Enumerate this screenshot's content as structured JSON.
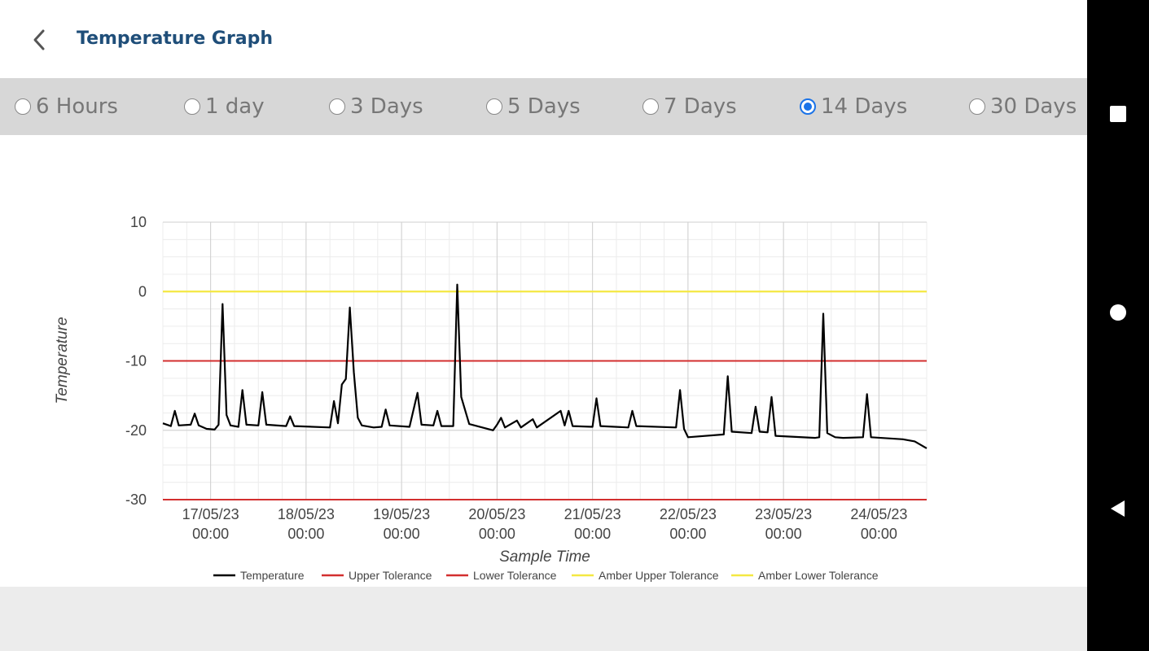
{
  "header": {
    "title": "Temperature Graph"
  },
  "range_options": [
    {
      "label": "6 Hours",
      "selected": false
    },
    {
      "label": "1 day",
      "selected": false
    },
    {
      "label": "3 Days",
      "selected": false
    },
    {
      "label": "5 Days",
      "selected": false
    },
    {
      "label": "7 Days",
      "selected": false
    },
    {
      "label": "14 Days",
      "selected": true
    },
    {
      "label": "30 Days",
      "selected": false
    }
  ],
  "chart_data": {
    "type": "line",
    "xlabel": "Sample Time",
    "ylabel": "Temperature",
    "ylim": [
      -30,
      10
    ],
    "yticks": [
      "10",
      "0",
      "-10",
      "-20",
      "-30"
    ],
    "xlim": [
      "16/05/23 12:00",
      "24/05/23 12:00"
    ],
    "xticks": [
      {
        "date": "17/05/23",
        "time": "00:00"
      },
      {
        "date": "18/05/23",
        "time": "00:00"
      },
      {
        "date": "19/05/23",
        "time": "00:00"
      },
      {
        "date": "20/05/23",
        "time": "00:00"
      },
      {
        "date": "21/05/23",
        "time": "00:00"
      },
      {
        "date": "22/05/23",
        "time": "00:00"
      },
      {
        "date": "23/05/23",
        "time": "00:00"
      },
      {
        "date": "24/05/23",
        "time": "00:00"
      }
    ],
    "grid": true,
    "legend_position": "bottom",
    "series": [
      {
        "name": "Temperature",
        "color": "#000000",
        "points": [
          [
            "16/05/23 12:00",
            -19.0
          ],
          [
            "16/05/23 14:00",
            -19.4
          ],
          [
            "16/05/23 15:00",
            -17.2
          ],
          [
            "16/05/23 16:00",
            -19.3
          ],
          [
            "16/05/23 19:00",
            -19.2
          ],
          [
            "16/05/23 20:00",
            -17.6
          ],
          [
            "16/05/23 21:00",
            -19.3
          ],
          [
            "16/05/23 23:00",
            -19.8
          ],
          [
            "17/05/23 01:00",
            -19.9
          ],
          [
            "17/05/23 02:00",
            -19.2
          ],
          [
            "17/05/23 03:00",
            -1.8
          ],
          [
            "17/05/23 04:00",
            -17.8
          ],
          [
            "17/05/23 05:00",
            -19.3
          ],
          [
            "17/05/23 07:00",
            -19.5
          ],
          [
            "17/05/23 08:00",
            -14.2
          ],
          [
            "17/05/23 09:00",
            -19.2
          ],
          [
            "17/05/23 12:00",
            -19.3
          ],
          [
            "17/05/23 13:00",
            -14.5
          ],
          [
            "17/05/23 14:00",
            -19.2
          ],
          [
            "17/05/23 19:00",
            -19.4
          ],
          [
            "17/05/23 20:00",
            -18.0
          ],
          [
            "17/05/23 21:00",
            -19.4
          ],
          [
            "18/05/23 06:00",
            -19.6
          ],
          [
            "18/05/23 07:00",
            -15.8
          ],
          [
            "18/05/23 08:00",
            -19.0
          ],
          [
            "18/05/23 09:00",
            -13.4
          ],
          [
            "18/05/23 10:00",
            -12.6
          ],
          [
            "18/05/23 11:00",
            -2.3
          ],
          [
            "18/05/23 12:00",
            -11.6
          ],
          [
            "18/05/23 13:00",
            -18.2
          ],
          [
            "18/05/23 14:00",
            -19.3
          ],
          [
            "18/05/23 17:00",
            -19.6
          ],
          [
            "18/05/23 19:00",
            -19.5
          ],
          [
            "18/05/23 20:00",
            -17.0
          ],
          [
            "18/05/23 21:00",
            -19.3
          ],
          [
            "19/05/23 02:00",
            -19.5
          ],
          [
            "19/05/23 04:00",
            -14.6
          ],
          [
            "19/05/23 05:00",
            -19.2
          ],
          [
            "19/05/23 08:00",
            -19.3
          ],
          [
            "19/05/23 09:00",
            -17.2
          ],
          [
            "19/05/23 10:00",
            -19.4
          ],
          [
            "19/05/23 13:00",
            -19.4
          ],
          [
            "19/05/23 14:00",
            1.0
          ],
          [
            "19/05/23 15:00",
            -15.2
          ],
          [
            "19/05/23 17:00",
            -19.1
          ],
          [
            "19/05/23 23:00",
            -20.0
          ],
          [
            "20/05/23 00:00",
            -19.2
          ],
          [
            "20/05/23 01:00",
            -18.2
          ],
          [
            "20/05/23 02:00",
            -19.6
          ],
          [
            "20/05/23 05:00",
            -18.6
          ],
          [
            "20/05/23 06:00",
            -19.6
          ],
          [
            "20/05/23 09:00",
            -18.4
          ],
          [
            "20/05/23 10:00",
            -19.6
          ],
          [
            "20/05/23 16:00",
            -17.2
          ],
          [
            "20/05/23 17:00",
            -19.3
          ],
          [
            "20/05/23 18:00",
            -17.2
          ],
          [
            "20/05/23 19:00",
            -19.4
          ],
          [
            "21/05/23 00:00",
            -19.5
          ],
          [
            "21/05/23 01:00",
            -15.4
          ],
          [
            "21/05/23 02:00",
            -19.4
          ],
          [
            "21/05/23 09:00",
            -19.6
          ],
          [
            "21/05/23 10:00",
            -17.2
          ],
          [
            "21/05/23 11:00",
            -19.4
          ],
          [
            "21/05/23 21:00",
            -19.6
          ],
          [
            "21/05/23 22:00",
            -14.2
          ],
          [
            "21/05/23 23:00",
            -19.8
          ],
          [
            "22/05/23 00:00",
            -21.0
          ],
          [
            "22/05/23 09:00",
            -20.6
          ],
          [
            "22/05/23 10:00",
            -12.2
          ],
          [
            "22/05/23 11:00",
            -20.2
          ],
          [
            "22/05/23 16:00",
            -20.4
          ],
          [
            "22/05/23 17:00",
            -16.6
          ],
          [
            "22/05/23 18:00",
            -20.2
          ],
          [
            "22/05/23 20:00",
            -20.3
          ],
          [
            "22/05/23 21:00",
            -15.2
          ],
          [
            "22/05/23 22:00",
            -20.8
          ],
          [
            "23/05/23 08:00",
            -21.1
          ],
          [
            "23/05/23 09:00",
            -21.0
          ],
          [
            "23/05/23 10:00",
            -3.2
          ],
          [
            "23/05/23 11:00",
            -20.4
          ],
          [
            "23/05/23 13:00",
            -21.0
          ],
          [
            "23/05/23 15:00",
            -21.1
          ],
          [
            "23/05/23 20:00",
            -21.0
          ],
          [
            "23/05/23 21:00",
            -14.8
          ],
          [
            "23/05/23 22:00",
            -21.0
          ],
          [
            "24/05/23 06:00",
            -21.3
          ],
          [
            "24/05/23 09:00",
            -21.6
          ],
          [
            "24/05/23 12:00",
            -22.6
          ]
        ]
      },
      {
        "name": "Upper Tolerance",
        "color": "#d32f2f",
        "value": -10
      },
      {
        "name": "Lower Tolerance",
        "color": "#d32f2f",
        "value": -30
      },
      {
        "name": "Amber Upper Tolerance",
        "color": "#f4e842",
        "value": 0
      },
      {
        "name": "Amber Lower Tolerance",
        "color": "#f4e842",
        "value": 0
      }
    ]
  }
}
